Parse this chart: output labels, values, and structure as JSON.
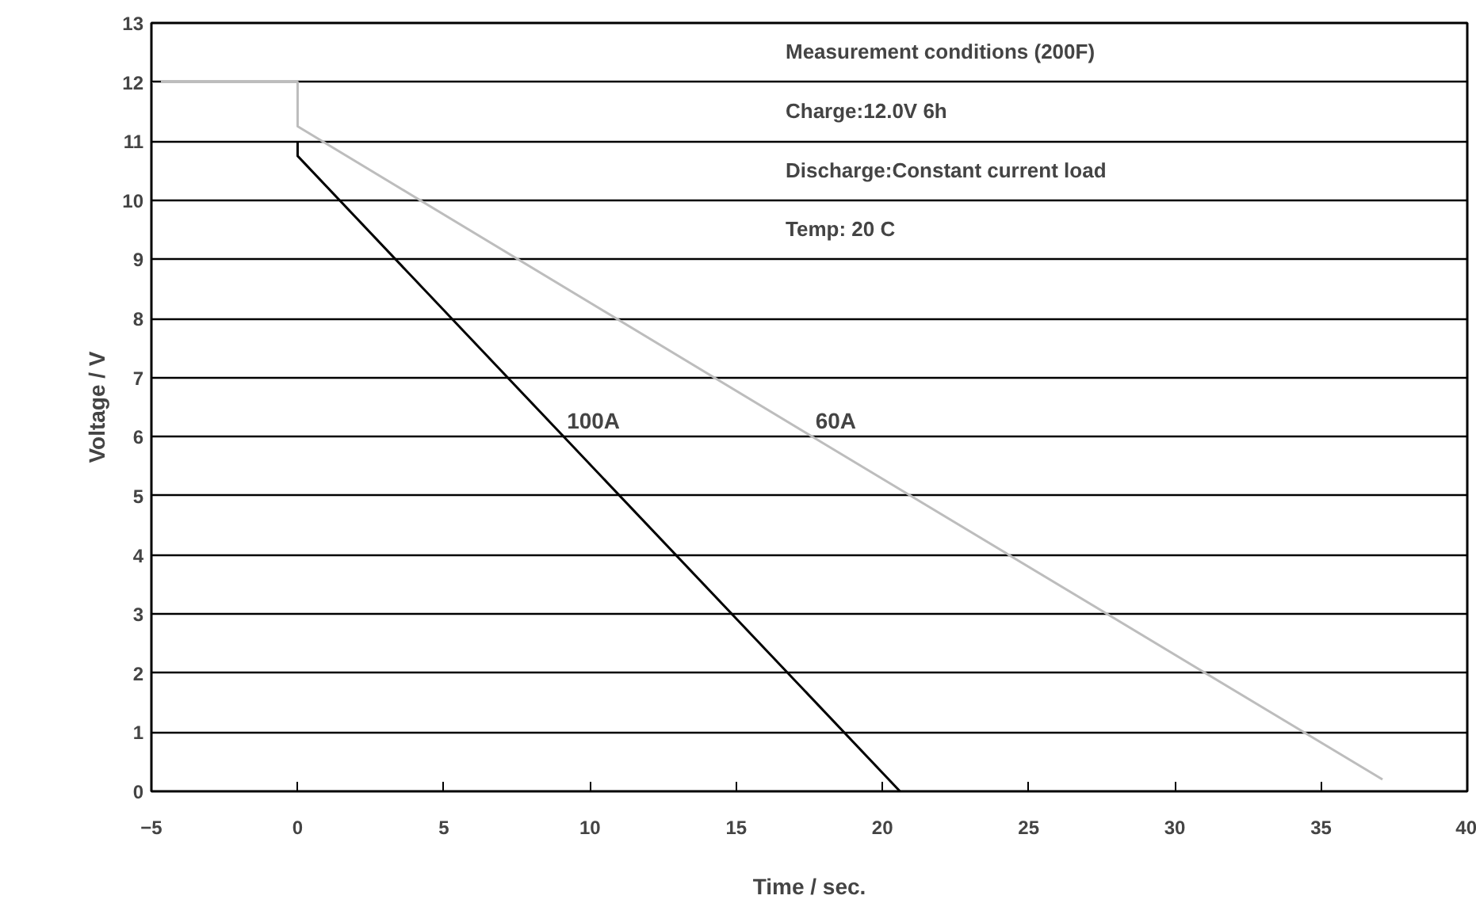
{
  "chart_data": {
    "type": "line",
    "xlabel": "Time / sec.",
    "ylabel": "Voltage / V",
    "xlim": [
      -5,
      40
    ],
    "xticks": [
      -5,
      0,
      5,
      10,
      15,
      20,
      25,
      30,
      35,
      40
    ],
    "ylim": [
      0,
      13
    ],
    "yticks": [
      0,
      1,
      2,
      3,
      4,
      5,
      6,
      7,
      8,
      9,
      10,
      11,
      12,
      13
    ],
    "grid": "y",
    "marker": "none",
    "line_style": "solid",
    "series": [
      {
        "name": "100A",
        "color": "#000000",
        "x": [
          0,
          0,
          9.1,
          20.6
        ],
        "values": [
          11,
          10.75,
          6,
          0
        ]
      },
      {
        "name": "60A",
        "color": "#bdbdbd",
        "x": [
          -5,
          0,
          0,
          17.6,
          37.1
        ],
        "values": [
          12,
          12,
          11.25,
          6,
          0.2
        ]
      }
    ],
    "annotations": [
      "Measurement conditions (200F)",
      "Charge:12.0V 6h",
      "Discharge:Constant current load",
      "Temp: 20 C"
    ]
  }
}
